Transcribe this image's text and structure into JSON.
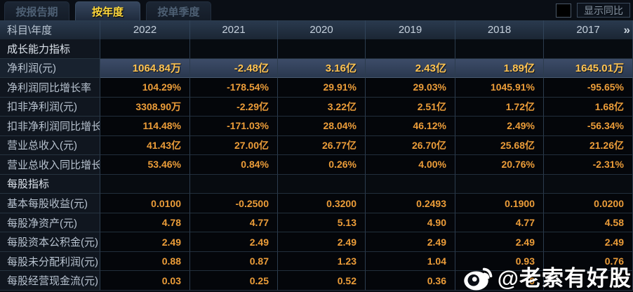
{
  "tabs": [
    {
      "label": "按报告期",
      "active": false
    },
    {
      "label": "按年度",
      "active": true
    },
    {
      "label": "按单季度",
      "active": false
    }
  ],
  "controls": {
    "show_yoy_label": "显示同比",
    "checkbox_checked": false
  },
  "table": {
    "corner_label": "科目\\年度",
    "years": [
      "2022",
      "2021",
      "2020",
      "2019",
      "2018",
      "2017"
    ],
    "more_icon": "»",
    "rows": [
      {
        "type": "section",
        "label": "成长能力指标",
        "values": [
          "",
          "",
          "",
          "",
          "",
          ""
        ]
      },
      {
        "type": "data",
        "highlight": true,
        "label": "净利润(元)",
        "values": [
          "1064.84万",
          "-2.48亿",
          "3.16亿",
          "2.43亿",
          "1.89亿",
          "1645.01万"
        ]
      },
      {
        "type": "data",
        "label": "净利润同比增长率",
        "values": [
          "104.29%",
          "-178.54%",
          "29.91%",
          "29.03%",
          "1045.91%",
          "-95.65%"
        ]
      },
      {
        "type": "data",
        "label": "扣非净利润(元)",
        "values": [
          "3308.90万",
          "-2.29亿",
          "3.22亿",
          "2.51亿",
          "1.72亿",
          "1.68亿"
        ]
      },
      {
        "type": "data",
        "label": "扣非净利润同比增长率",
        "values": [
          "114.48%",
          "-171.03%",
          "28.04%",
          "46.12%",
          "2.49%",
          "-56.34%"
        ]
      },
      {
        "type": "data",
        "label": "营业总收入(元)",
        "values": [
          "41.43亿",
          "27.00亿",
          "26.77亿",
          "26.70亿",
          "25.68亿",
          "21.26亿"
        ]
      },
      {
        "type": "data",
        "label": "营业总收入同比增长率",
        "values": [
          "53.46%",
          "0.84%",
          "0.26%",
          "4.00%",
          "20.76%",
          "-2.31%"
        ]
      },
      {
        "type": "section",
        "label": "每股指标",
        "values": [
          "",
          "",
          "",
          "",
          "",
          ""
        ]
      },
      {
        "type": "data",
        "label": "基本每股收益(元)",
        "values": [
          "0.0100",
          "-0.2500",
          "0.3200",
          "0.2493",
          "0.1900",
          "0.0200"
        ]
      },
      {
        "type": "data",
        "label": "每股净资产(元)",
        "values": [
          "4.78",
          "4.77",
          "5.13",
          "4.90",
          "4.77",
          "4.58"
        ]
      },
      {
        "type": "data",
        "label": "每股资本公积金(元)",
        "values": [
          "2.49",
          "2.49",
          "2.49",
          "2.49",
          "2.49",
          "2.49"
        ]
      },
      {
        "type": "data",
        "label": "每股未分配利润(元)",
        "values": [
          "0.88",
          "0.87",
          "1.23",
          "1.04",
          "0.93",
          "0.76"
        ]
      },
      {
        "type": "data",
        "label": "每股经营现金流(元)",
        "values": [
          "0.03",
          "0.25",
          "0.52",
          "0.36",
          "0",
          ""
        ]
      }
    ]
  },
  "watermark": {
    "text": "@老索有好股",
    "icon": "weibo-icon"
  },
  "colors": {
    "value_text": "#ec9d39",
    "highlight_value_text": "#ffc351",
    "active_tab_text": "#ffd83d",
    "label_text": "#b7c2cf",
    "header_bg": "#1f2c3c",
    "highlight_row_bg": "#32405a",
    "page_bg": "#0a0e15"
  }
}
